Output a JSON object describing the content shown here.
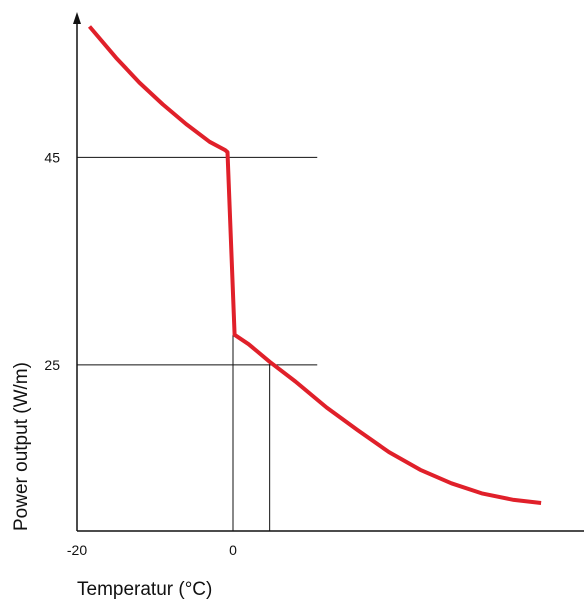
{
  "chart_data": {
    "type": "line",
    "title": "",
    "xlabel": "Temperatur (°C)",
    "ylabel": "Power output (W/m)",
    "xlim": [
      -20,
      45
    ],
    "ylim": [
      9,
      59
    ],
    "x_ticks": [
      {
        "value": -20,
        "label": "-20"
      },
      {
        "value": 0,
        "label": "0"
      }
    ],
    "y_ticks": [
      {
        "value": 25,
        "label": "25"
      },
      {
        "value": 45,
        "label": "45"
      }
    ],
    "grid": false,
    "series": [
      {
        "color": "#e0202a",
        "points": [
          [
            -18.4,
            57.6
          ],
          [
            -15,
            54.6
          ],
          [
            -12,
            52.2
          ],
          [
            -9,
            50.1
          ],
          [
            -6,
            48.2
          ],
          [
            -3,
            46.5
          ],
          [
            -1,
            45.7
          ],
          [
            -0.7,
            45.5
          ],
          [
            0.2,
            27.9
          ],
          [
            2,
            27
          ],
          [
            4.7,
            25.3
          ],
          [
            8,
            23.4
          ],
          [
            12,
            20.9
          ],
          [
            16,
            18.7
          ],
          [
            20,
            16.6
          ],
          [
            24,
            14.9
          ],
          [
            28,
            13.6
          ],
          [
            32,
            12.6
          ],
          [
            36,
            12
          ],
          [
            39.5,
            11.7
          ]
        ]
      }
    ],
    "reference_lines": [
      {
        "orientation": "horizontal",
        "value": 45,
        "from": -20,
        "to": 10.8
      },
      {
        "orientation": "horizontal",
        "value": 25,
        "from": -20,
        "to": 10.8
      },
      {
        "orientation": "vertical",
        "value": 0,
        "from": 9,
        "to": 27.9
      },
      {
        "orientation": "vertical",
        "value": 4.7,
        "from": 9,
        "to": 25.3
      }
    ]
  }
}
